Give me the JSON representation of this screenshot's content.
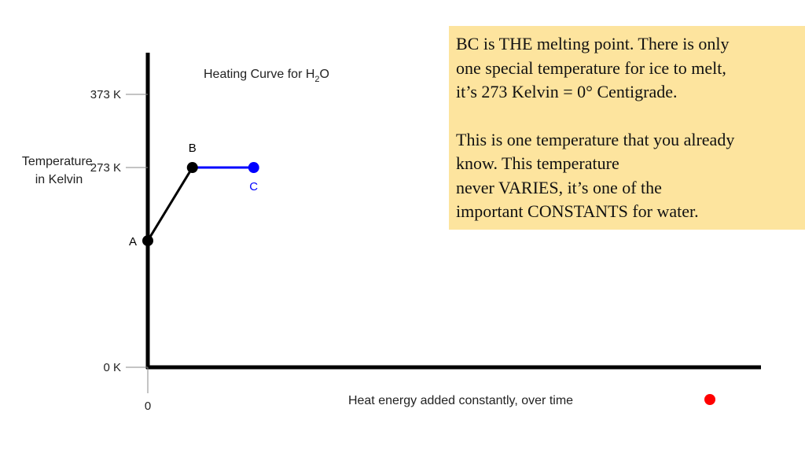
{
  "chart_data": {
    "type": "line",
    "title": "Heating Curve for H",
    "title_subscript": "2",
    "title_suffix": "O",
    "ylabel_lines": [
      "Temperature",
      "in Kelvin"
    ],
    "xlabel": "Heat energy added constantly, over time",
    "x_tick_labels": [
      {
        "value": 0,
        "label": "0"
      }
    ],
    "y_tick_labels": [
      {
        "value": 0,
        "label": "0 K"
      },
      {
        "value": 273,
        "label": "273 K"
      },
      {
        "value": 373,
        "label": "373 K"
      }
    ],
    "ylim": [
      0,
      430
    ],
    "xlim": [
      0,
      11
    ],
    "points": [
      {
        "label": "A",
        "x": 0,
        "y": 173,
        "color": "#000000"
      },
      {
        "label": "B",
        "x": 0.8,
        "y": 273,
        "color": "#000000"
      },
      {
        "label": "C",
        "x": 1.9,
        "y": 273,
        "color": "#0000ff"
      }
    ],
    "segments": [
      {
        "from": "A",
        "to": "B",
        "color": "#000000"
      },
      {
        "from": "B",
        "to": "C",
        "color": "#0000ff"
      }
    ],
    "marker": {
      "color": "#ff0000"
    },
    "grid": false,
    "legend": "none"
  },
  "note": {
    "paragraph1": [
      "BC is THE melting point.  There is only",
      "one special temperature for ice to melt,",
      "it’s 273 Kelvin = 0° Centigrade."
    ],
    "paragraph2": [
      "This is one temperature that you already",
      "know.  This temperature",
      "never VARIES, it’s one of the",
      "important CONSTANTS for water."
    ],
    "background": "#fde49e"
  }
}
